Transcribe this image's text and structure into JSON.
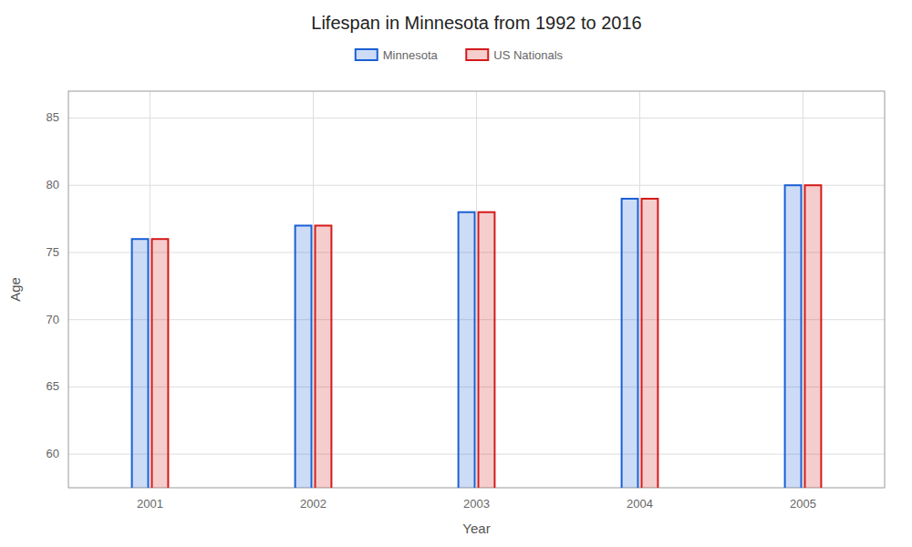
{
  "chart_data": {
    "type": "bar",
    "title": "Lifespan in Minnesota from 1992 to 2016",
    "xlabel": "Year",
    "ylabel": "Age",
    "categories": [
      "2001",
      "2002",
      "2003",
      "2004",
      "2005"
    ],
    "series": [
      {
        "name": "Minnesota",
        "color": "#1a5fd4",
        "values": [
          76,
          77,
          78,
          79,
          80
        ]
      },
      {
        "name": "US Nationals",
        "color": "#d41a1a",
        "values": [
          76,
          77,
          78,
          79,
          80
        ]
      }
    ],
    "ylim": [
      57.5,
      87
    ],
    "yticks": [
      60,
      65,
      70,
      75,
      80,
      85
    ],
    "grid": true,
    "legend": "top"
  }
}
